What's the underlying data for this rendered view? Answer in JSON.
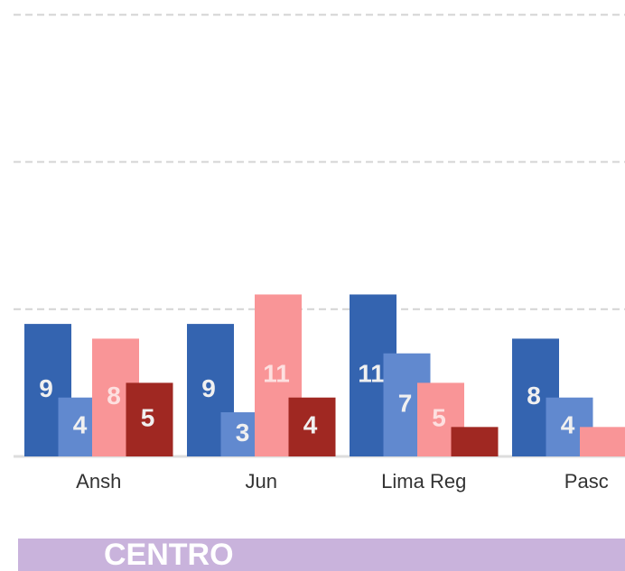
{
  "chart_data": {
    "type": "bar",
    "categories": [
      "Ansh",
      "Jun",
      "Lima Reg",
      "Pasc"
    ],
    "series": [
      {
        "color": "#3464b0",
        "values": [
          9,
          9,
          11,
          8
        ]
      },
      {
        "color": "#6189cf",
        "values": [
          4,
          3,
          7,
          4
        ]
      },
      {
        "color": "#f99597",
        "values": [
          8,
          11,
          5,
          2
        ]
      },
      {
        "color": "#a02822",
        "values": [
          5,
          4,
          2,
          null
        ]
      }
    ],
    "ylim": [
      0,
      31
    ],
    "yticks": [
      0,
      10,
      20,
      30
    ],
    "grid": true,
    "banner": "CENTRO"
  }
}
